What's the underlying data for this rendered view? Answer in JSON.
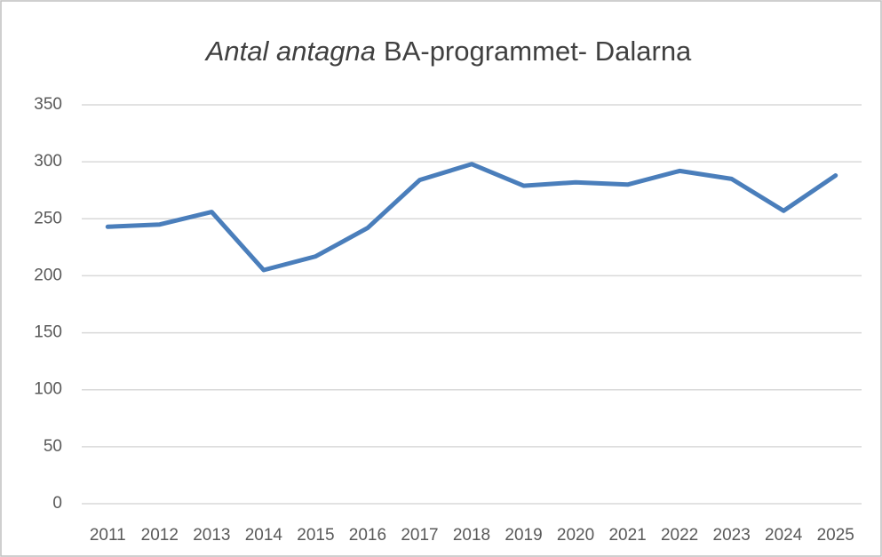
{
  "chart_data": {
    "type": "line",
    "title": [
      "Antal antagna",
      "BA-programmet- Dalarna"
    ],
    "categories": [
      "2011",
      "2012",
      "2013",
      "2014",
      "2015",
      "2016",
      "2017",
      "2018",
      "2019",
      "2020",
      "2021",
      "2022",
      "2023",
      "2024",
      "2025"
    ],
    "values": [
      243,
      245,
      256,
      205,
      217,
      242,
      284,
      298,
      279,
      282,
      280,
      292,
      285,
      257,
      288
    ],
    "color": "#4a7ebb",
    "ylim": [
      0,
      350
    ],
    "yticks": [
      0,
      50,
      100,
      150,
      200,
      250,
      300,
      350
    ],
    "grid": true
  }
}
